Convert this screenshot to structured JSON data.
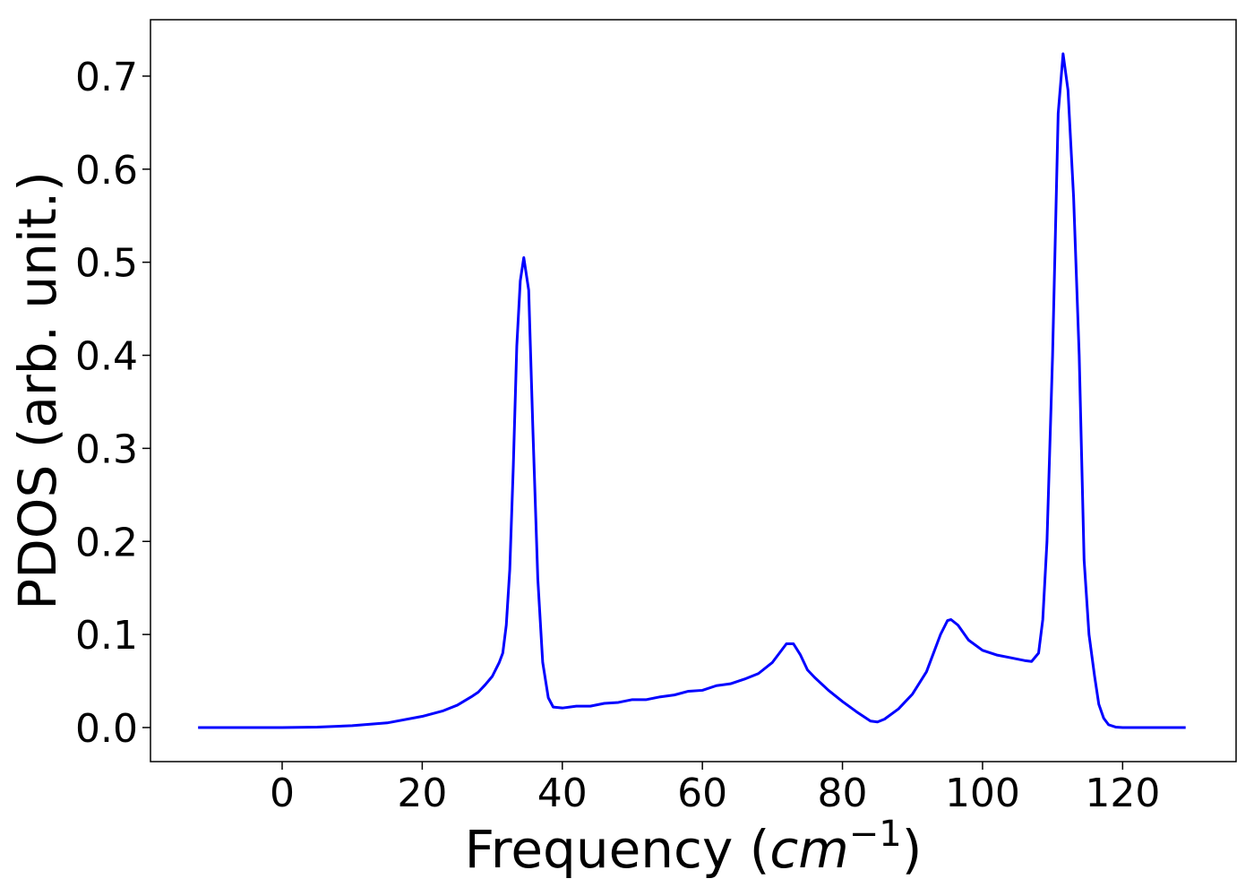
{
  "chart_data": {
    "type": "line",
    "xlabel": [
      "Frequency (",
      "cm",
      "−1",
      ")"
    ],
    "ylabel": "PDOS (arb. unit.)",
    "xlim": [
      -18.8,
      136.2
    ],
    "ylim": [
      -0.0366,
      0.7606
    ],
    "xticks": [
      0,
      20,
      40,
      60,
      80,
      100,
      120
    ],
    "yticks": [
      {
        "value": 0,
        "label": "0.0"
      },
      0.1,
      0.2,
      0.3,
      0.4,
      0.5,
      0.6,
      0.7
    ],
    "series": [
      {
        "color": "#0000ff",
        "x": [
          -12,
          -5,
          0,
          5,
          10,
          15,
          20,
          23,
          25,
          27,
          28,
          29,
          30,
          31,
          31.5,
          32,
          32.5,
          33,
          33.5,
          34,
          34.5,
          35.2,
          35.8,
          36.5,
          37.2,
          38,
          38.7,
          40,
          42,
          44,
          46,
          48,
          50,
          52,
          54,
          56,
          58,
          60,
          62,
          64,
          66,
          68,
          70,
          71,
          72,
          73,
          74,
          75,
          76,
          78,
          80,
          82,
          84,
          85,
          86,
          88,
          90,
          92,
          94,
          95,
          95.5,
          96.5,
          98,
          100,
          102,
          104,
          106,
          107,
          108,
          108.6,
          109.2,
          110,
          110.8,
          111.5,
          112.2,
          113,
          113.8,
          114.5,
          115.2,
          116,
          116.6,
          117.3,
          118,
          119,
          120,
          125,
          129
        ],
        "values": [
          0,
          0,
          0,
          0.0005,
          0.002,
          0.005,
          0.012,
          0.018,
          0.024,
          0.033,
          0.038,
          0.046,
          0.055,
          0.07,
          0.08,
          0.11,
          0.17,
          0.28,
          0.41,
          0.48,
          0.505,
          0.47,
          0.32,
          0.16,
          0.07,
          0.032,
          0.022,
          0.021,
          0.023,
          0.023,
          0.026,
          0.027,
          0.03,
          0.03,
          0.033,
          0.035,
          0.039,
          0.04,
          0.045,
          0.047,
          0.052,
          0.058,
          0.07,
          0.08,
          0.09,
          0.09,
          0.078,
          0.062,
          0.054,
          0.04,
          0.028,
          0.017,
          0.007,
          0.006,
          0.009,
          0.02,
          0.036,
          0.06,
          0.1,
          0.115,
          0.116,
          0.11,
          0.094,
          0.083,
          0.078,
          0.075,
          0.072,
          0.071,
          0.08,
          0.116,
          0.2,
          0.4,
          0.66,
          0.724,
          0.685,
          0.57,
          0.4,
          0.18,
          0.1,
          0.055,
          0.025,
          0.01,
          0.003,
          0.0005,
          0,
          0,
          0
        ]
      }
    ]
  }
}
